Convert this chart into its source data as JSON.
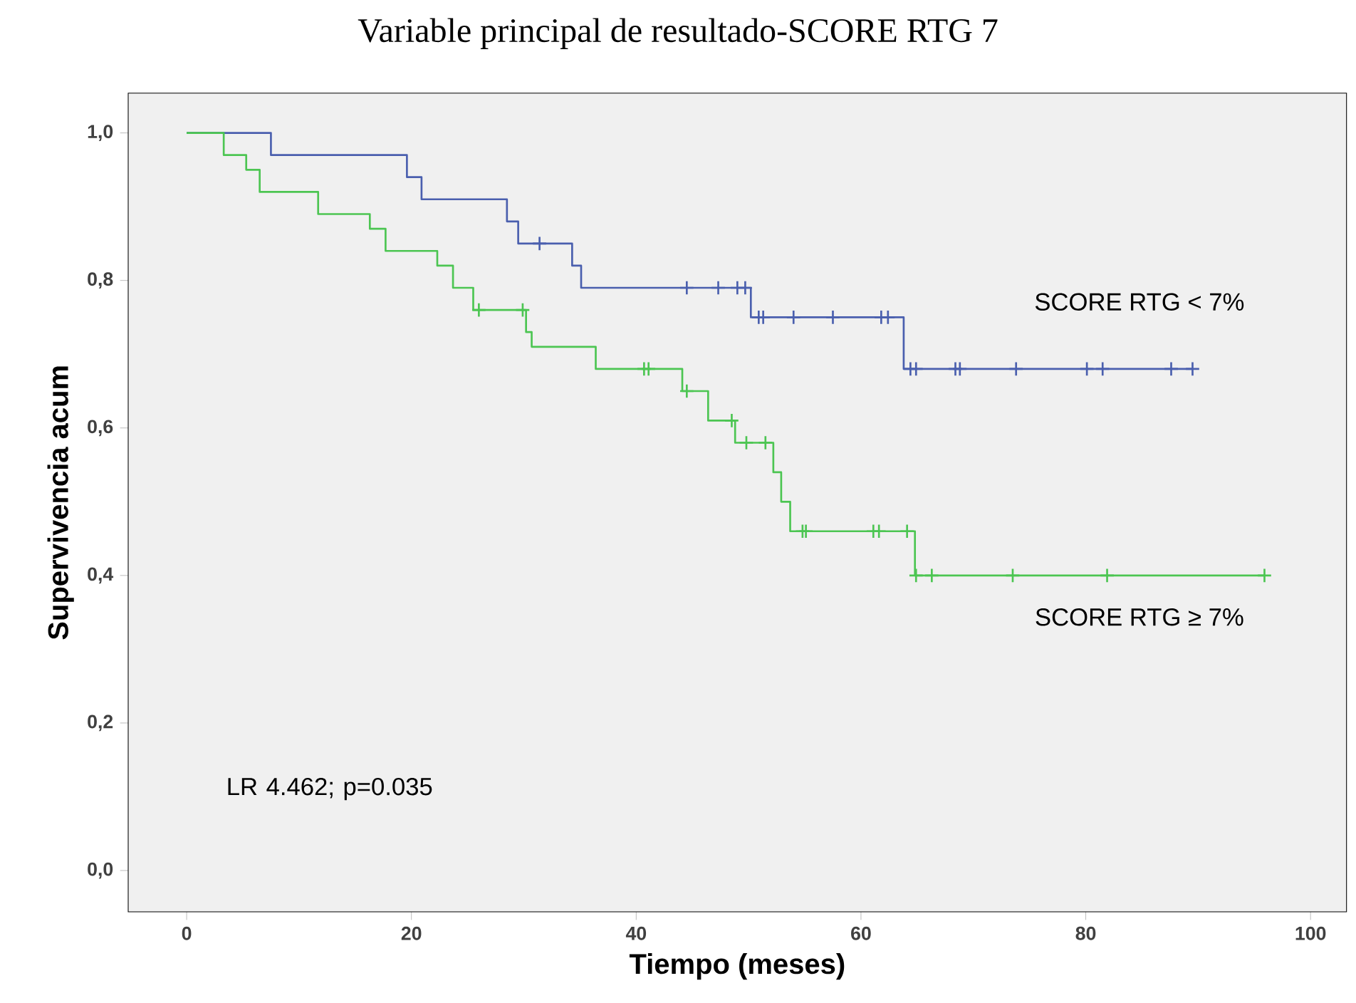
{
  "chart_data": {
    "type": "step",
    "title": "Variable principal de resultado-SCORE RTG 7",
    "xlabel": "Tiempo (meses)",
    "ylabel": "Supervivencia acum",
    "xlim": [
      -5.2,
      103.2
    ],
    "ylim": [
      -0.056,
      1.054
    ],
    "xticks": [
      0,
      20,
      40,
      60,
      80,
      100
    ],
    "yticks": [
      {
        "value": 0,
        "label": "0,0"
      },
      {
        "value": 0.2,
        "label": "0,2"
      },
      {
        "value": 0.4,
        "label": "0,4"
      },
      {
        "value": 0.6,
        "label": "0,6"
      },
      {
        "value": 0.8,
        "label": "0,8"
      },
      {
        "value": 1.0,
        "label": "1,0"
      }
    ],
    "grid": false,
    "legend": false,
    "annotations": [
      "LR 4.462; p=0.035"
    ],
    "series": [
      {
        "name": "SCORE RTG < 7%",
        "color": "#4a5fae",
        "x": [
          0,
          7.5,
          19.6,
          20.9,
          28.5,
          29.5,
          34.3,
          35.1,
          50.2,
          63.8,
          89.5
        ],
        "values": [
          1.0,
          0.97,
          0.94,
          0.91,
          0.88,
          0.85,
          0.82,
          0.79,
          0.75,
          0.68,
          0.68
        ]
      },
      {
        "type": "scatter",
        "marker": "cross",
        "color": "#4a5fae",
        "x": [
          31.4,
          44.5,
          47.3,
          49.0,
          49.7,
          50.9,
          51.3,
          54.0,
          57.5,
          61.8,
          62.4,
          64.4,
          64.9,
          68.4,
          68.8,
          73.8,
          80.1,
          81.5,
          87.6,
          89.5
        ],
        "values": [
          0.85,
          0.79,
          0.79,
          0.79,
          0.79,
          0.75,
          0.75,
          0.75,
          0.75,
          0.75,
          0.75,
          0.68,
          0.68,
          0.68,
          0.68,
          0.68,
          0.68,
          0.68,
          0.68,
          0.68
        ]
      },
      {
        "name": "SCORE RTG ≥ 7%",
        "color": "#4cc552",
        "x": [
          0,
          3.3,
          5.3,
          6.5,
          11.7,
          16.3,
          17.7,
          22.3,
          23.7,
          25.5,
          30.2,
          30.7,
          36.4,
          44.1,
          46.4,
          48.8,
          52.2,
          52.9,
          53.7,
          64.8,
          95.9
        ],
        "values": [
          1.0,
          0.97,
          0.95,
          0.92,
          0.89,
          0.87,
          0.84,
          0.82,
          0.79,
          0.76,
          0.73,
          0.71,
          0.68,
          0.65,
          0.61,
          0.58,
          0.54,
          0.5,
          0.46,
          0.4,
          0.4
        ]
      },
      {
        "type": "scatter",
        "marker": "cross",
        "color": "#4cc552",
        "x": [
          26.0,
          29.9,
          40.7,
          41.1,
          44.5,
          48.5,
          49.8,
          51.5,
          54.8,
          55.1,
          61.1,
          61.6,
          64.1,
          64.9,
          66.3,
          73.5,
          81.9,
          95.9
        ],
        "values": [
          0.76,
          0.76,
          0.68,
          0.68,
          0.65,
          0.61,
          0.58,
          0.58,
          0.46,
          0.46,
          0.46,
          0.46,
          0.46,
          0.4,
          0.4,
          0.4,
          0.4,
          0.4
        ]
      }
    ]
  }
}
